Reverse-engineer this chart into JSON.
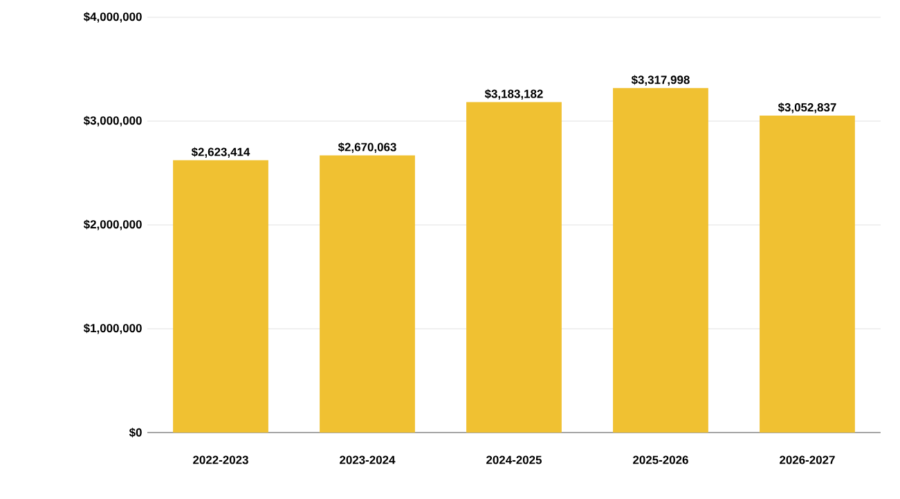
{
  "chart_data": {
    "type": "bar",
    "categories": [
      "2022-2023",
      "2023-2024",
      "2024-2025",
      "2025-2026",
      "2026-2027"
    ],
    "values": [
      2623414,
      2670063,
      3183182,
      3317998,
      3052837
    ],
    "value_labels": [
      "$2,623,414",
      "$2,670,063",
      "$3,183,182",
      "$3,317,998",
      "$3,052,837"
    ],
    "color": "#f0c132",
    "ylim": [
      0,
      4000000
    ],
    "yticks": [
      {
        "value": 0,
        "label": "$0"
      },
      {
        "value": 1000000,
        "label": "$1,000,000"
      },
      {
        "value": 2000000,
        "label": "$2,000,000"
      },
      {
        "value": 3000000,
        "label": "$3,000,000"
      },
      {
        "value": 4000000,
        "label": "$4,000,000"
      }
    ],
    "grid": "y"
  }
}
